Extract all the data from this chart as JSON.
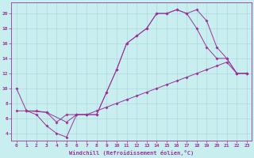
{
  "xlabel": "Windchill (Refroidissement éolien,°C)",
  "background_color": "#c8eef0",
  "grid_color": "#b0d8dc",
  "line_color": "#993399",
  "xlim": [
    -0.5,
    23.5
  ],
  "ylim": [
    3.0,
    21.5
  ],
  "xticks": [
    0,
    1,
    2,
    3,
    4,
    5,
    6,
    7,
    8,
    9,
    10,
    11,
    12,
    13,
    14,
    15,
    16,
    17,
    18,
    19,
    20,
    21,
    22,
    23
  ],
  "yticks": [
    4,
    6,
    8,
    10,
    12,
    14,
    16,
    18,
    20
  ],
  "line1_x": [
    0,
    1,
    2,
    3,
    4,
    5,
    6,
    7,
    8,
    9,
    10,
    11,
    12,
    13,
    14,
    15,
    16,
    17,
    18,
    19,
    20,
    21,
    22,
    23
  ],
  "line1_y": [
    10,
    7,
    6.5,
    5,
    4,
    3.5,
    6.5,
    6.5,
    6.5,
    9.5,
    12.5,
    16,
    17,
    18,
    20,
    20,
    20.5,
    20,
    20.5,
    19,
    15.5,
    14,
    12,
    12
  ],
  "line2_x": [
    0,
    1,
    2,
    3,
    4,
    5,
    6,
    7,
    8,
    9,
    10,
    11,
    12,
    13,
    14,
    15,
    16,
    17,
    18,
    19,
    20,
    21,
    22,
    23
  ],
  "line2_y": [
    7,
    7,
    7,
    6.8,
    5.5,
    6.5,
    6.5,
    6.5,
    7.0,
    7.5,
    8.0,
    8.5,
    9.0,
    9.5,
    10.0,
    10.5,
    11.0,
    11.5,
    12.0,
    12.5,
    13.0,
    13.5,
    12.0,
    12.0
  ],
  "line3_x": [
    1,
    3,
    5,
    6,
    7,
    8,
    9,
    10,
    11,
    12,
    13,
    14,
    15,
    16,
    17,
    18,
    19,
    20,
    21,
    22,
    23
  ],
  "line3_y": [
    7,
    6.8,
    5.5,
    6.5,
    6.5,
    6.5,
    9.5,
    12.5,
    16,
    17,
    18,
    20,
    20,
    20.5,
    20,
    18,
    15.5,
    14,
    14,
    12,
    12
  ],
  "marker": "D",
  "marker_size": 2.0,
  "linewidth": 0.7,
  "tick_fontsize": 4.5,
  "xlabel_fontsize": 5.0
}
